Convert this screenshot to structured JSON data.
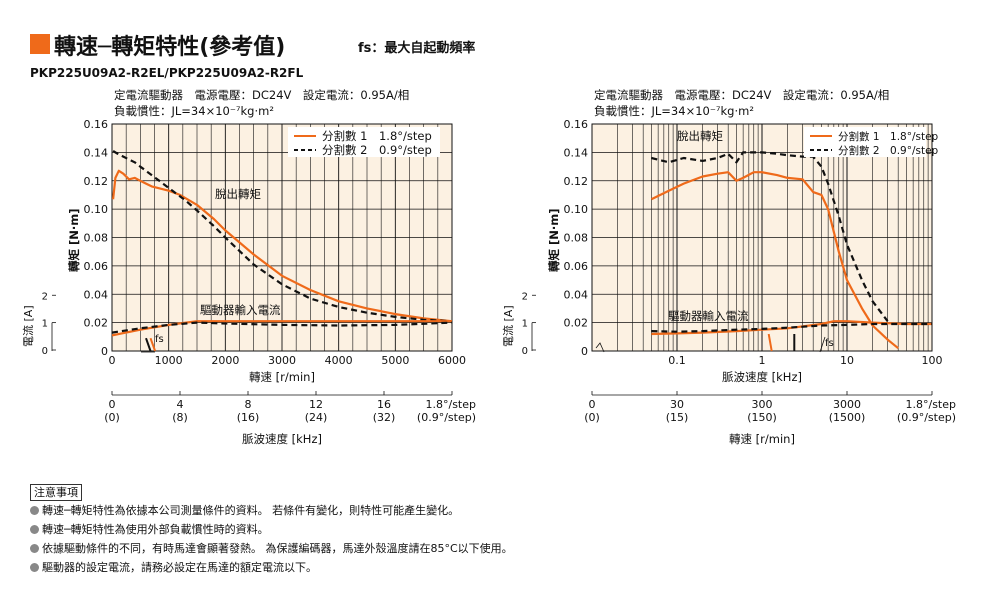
{
  "header": {
    "title": "轉速─轉矩特性(參考值)",
    "subtitle": "fs：最大自起動頻率",
    "model": "PKP225U09A2-R2EL/PKP225U09A2-R2FL",
    "accent_color": "#ef6a1a"
  },
  "chart_data": [
    {
      "type": "line",
      "conditions": [
        "定電流驅動器　電源電壓：DC24V　設定電流：0.95A/相",
        "負載慣性：JL=34×10⁻⁷kg·m²"
      ],
      "ylabel": "轉矩 [N·m]",
      "ylim": [
        0,
        0.16
      ],
      "yticks": [
        "0",
        "0.02",
        "0.04",
        "0.06",
        "0.08",
        "0.10",
        "0.12",
        "0.14",
        "0.16"
      ],
      "current_label": "電流 [A]",
      "current_ticks": [
        "0",
        "1",
        "2"
      ],
      "current_lim": [
        0,
        2
      ],
      "xlabel": "轉速 [r/min]",
      "xlim": [
        0,
        6000
      ],
      "xticks": [
        "0",
        "1000",
        "2000",
        "3000",
        "4000",
        "5000",
        "6000"
      ],
      "secondary_axis": {
        "label": "脈波速度 [kHz]",
        "ticks": [
          "0\n(0)",
          "4\n(8)",
          "8\n(16)",
          "12\n(24)",
          "16\n(32)",
          "1.8°/step\n(0.9°/step)"
        ]
      },
      "annotations": [
        "脫出轉矩",
        "驅動器輸入電流",
        "fs"
      ],
      "series": [
        {
          "name": "分割數 1　1.8°/step",
          "color": "#ef6a1a",
          "dash": "solid",
          "x": [
            20,
            60,
            120,
            200,
            300,
            400,
            500,
            600,
            700,
            800,
            1000,
            1200,
            1500,
            1800,
            2000,
            2500,
            3000,
            3500,
            4000,
            4500,
            5000,
            5500,
            6000
          ],
          "y": [
            0.107,
            0.122,
            0.127,
            0.125,
            0.121,
            0.122,
            0.12,
            0.118,
            0.116,
            0.115,
            0.113,
            0.11,
            0.103,
            0.093,
            0.085,
            0.068,
            0.053,
            0.043,
            0.035,
            0.03,
            0.026,
            0.023,
            0.021
          ]
        },
        {
          "name": "分割數 2　0.9°/step",
          "color": "#111111",
          "dash": "dashed",
          "x": [
            20,
            100,
            200,
            300,
            400,
            500,
            700,
            900,
            1100,
            1300,
            1500,
            1800,
            2000,
            2500,
            3000,
            3500,
            4000,
            4500,
            5000,
            5500,
            6000
          ],
          "y": [
            0.141,
            0.139,
            0.137,
            0.135,
            0.133,
            0.13,
            0.124,
            0.118,
            0.112,
            0.106,
            0.099,
            0.088,
            0.08,
            0.061,
            0.047,
            0.037,
            0.031,
            0.027,
            0.024,
            0.022,
            0.021
          ]
        },
        {
          "name": "驅動器輸入電流 分割數 1",
          "color": "#ef6a1a",
          "dash": "solid",
          "axis": "current",
          "x": [
            0,
            500,
            1000,
            1500,
            2000,
            3000,
            4000,
            5000,
            6000
          ],
          "y": [
            0.55,
            0.75,
            0.92,
            1.05,
            1.05,
            1.05,
            1.05,
            1.05,
            1.05
          ]
        },
        {
          "name": "驅動器輸入電流 分割數 2",
          "color": "#111111",
          "dash": "dashed",
          "axis": "current",
          "x": [
            0,
            500,
            1000,
            1500,
            2000,
            3000,
            4000,
            5000,
            6000
          ],
          "y": [
            0.65,
            0.8,
            0.92,
            1.0,
            0.97,
            0.92,
            0.9,
            0.92,
            1.0
          ]
        },
        {
          "name": "fs 1.8°/step",
          "color": "#ef6a1a",
          "dash": "solid",
          "axis": "fs",
          "x": [
            680,
            760
          ],
          "y": [
            0.009,
            0.0
          ]
        },
        {
          "name": "fs 0.9°/step",
          "color": "#111111",
          "dash": "solid",
          "axis": "fs",
          "x": [
            600,
            680
          ],
          "y": [
            0.009,
            0.0
          ]
        }
      ]
    },
    {
      "type": "line",
      "xscale": "log",
      "conditions": [
        "定電流驅動器　電源電壓：DC24V　設定電流：0.95A/相",
        "負載慣性：JL=34×10⁻⁷kg·m²"
      ],
      "ylabel": "轉矩 [N·m]",
      "ylim": [
        0,
        0.16
      ],
      "yticks": [
        "0",
        "0.02",
        "0.04",
        "0.06",
        "0.08",
        "0.10",
        "0.12",
        "0.14",
        "0.16"
      ],
      "current_label": "電流 [A]",
      "current_ticks": [
        "0",
        "1",
        "2"
      ],
      "current_lim": [
        0,
        2
      ],
      "xlabel": "脈波速度 [kHz]",
      "xlim": [
        0.01,
        100
      ],
      "xticks": [
        "0.1",
        "1",
        "10",
        "100"
      ],
      "secondary_axis": {
        "label": "轉速 [r/min]",
        "ticks": [
          "0\n(0)",
          "30\n(15)",
          "300\n(150)",
          "3000\n(1500)",
          "1.8°/step\n(0.9°/step)"
        ]
      },
      "annotations": [
        "脫出轉矩",
        "驅動器輸入電流",
        "fs"
      ],
      "series": [
        {
          "name": "分割數 1　1.8°/step",
          "color": "#ef6a1a",
          "dash": "solid",
          "x": [
            0.05,
            0.08,
            0.12,
            0.2,
            0.3,
            0.4,
            0.5,
            0.6,
            0.8,
            1.0,
            1.5,
            2.0,
            3.0,
            4.0,
            5.0,
            6.0,
            8.0,
            10,
            15,
            20,
            30,
            40
          ],
          "y": [
            0.107,
            0.113,
            0.118,
            0.123,
            0.125,
            0.126,
            0.12,
            0.122,
            0.126,
            0.126,
            0.124,
            0.122,
            0.121,
            0.112,
            0.11,
            0.1,
            0.07,
            0.05,
            0.03,
            0.018,
            0.008,
            0.002
          ]
        },
        {
          "name": "分割數 2　0.9°/step",
          "color": "#111111",
          "dash": "dashed",
          "x": [
            0.05,
            0.08,
            0.12,
            0.2,
            0.3,
            0.4,
            0.5,
            0.6,
            0.8,
            1.0,
            1.5,
            2.0,
            3.0,
            4.0,
            5.0,
            6.0,
            8.0,
            10,
            15,
            20,
            30
          ],
          "y": [
            0.136,
            0.133,
            0.136,
            0.134,
            0.136,
            0.139,
            0.133,
            0.14,
            0.14,
            0.14,
            0.139,
            0.138,
            0.137,
            0.137,
            0.13,
            0.118,
            0.095,
            0.075,
            0.05,
            0.035,
            0.021
          ]
        },
        {
          "name": "驅動器輸入電流 分割數 1",
          "color": "#ef6a1a",
          "dash": "solid",
          "axis": "current",
          "x": [
            0.05,
            0.1,
            0.2,
            0.5,
            1.0,
            2.0,
            5.0,
            7.0,
            10,
            20,
            50,
            100
          ],
          "y": [
            0.6,
            0.62,
            0.65,
            0.7,
            0.75,
            0.8,
            0.95,
            1.05,
            1.05,
            1.0,
            0.95,
            0.95
          ]
        },
        {
          "name": "驅動器輸入電流 分割數 2",
          "color": "#111111",
          "dash": "dashed",
          "axis": "current",
          "x": [
            0.05,
            0.1,
            0.2,
            0.5,
            1.0,
            2.0,
            5.0,
            10,
            20,
            50,
            100
          ],
          "y": [
            0.7,
            0.68,
            0.7,
            0.75,
            0.78,
            0.82,
            0.9,
            0.92,
            0.95,
            0.95,
            0.95
          ]
        },
        {
          "name": "fs 1.8°/step",
          "color": "#ef6a1a",
          "dash": "solid",
          "axis": "fs",
          "x": [
            1.2,
            1.3
          ],
          "y": [
            0.012,
            0.0
          ]
        },
        {
          "name": "fs 0.9°/step",
          "color": "#111111",
          "dash": "solid",
          "axis": "fs",
          "x": [
            2.4,
            2.4
          ],
          "y": [
            0.012,
            0.0
          ]
        }
      ]
    }
  ],
  "notes": {
    "title": "注意事項",
    "items": [
      "轉速─轉矩特性為依據本公司測量條件的資料。 若條件有變化，則特性可能產生變化。",
      "轉速─轉矩特性為使用外部負載慣性時的資料。",
      "依據驅動條件的不同，有時馬達會顯著發熱。 為保護編碼器，馬達外殼溫度請在85°C以下使用。",
      "驅動器的設定電流，請務必設定在馬達的額定電流以下。"
    ]
  }
}
